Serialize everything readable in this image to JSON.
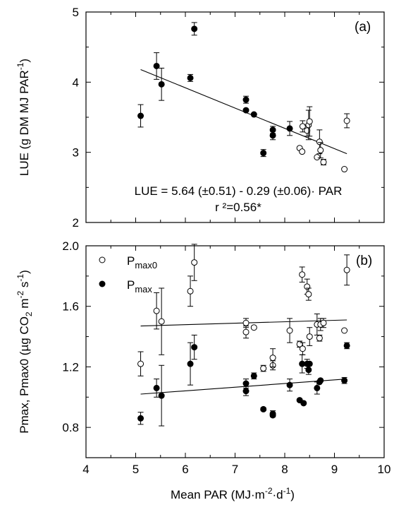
{
  "chart_data": [
    {
      "type": "scatter",
      "panel_label": "(a)",
      "ylabel": "LUE (g DM MJ PAR",
      "ylabel_exp": "-1",
      "ylabel_close": ")",
      "xlim": [
        4,
        10
      ],
      "ylim": [
        2,
        5
      ],
      "y_ticks": [
        "2",
        "3",
        "4",
        "5"
      ],
      "grid": false,
      "series": [
        {
          "marker": "filled",
          "x": [
            5.1,
            5.42,
            5.52,
            6.1,
            6.18,
            7.22,
            7.22,
            7.38,
            7.57,
            7.76,
            7.76,
            8.1
          ],
          "y": [
            3.52,
            4.23,
            3.97,
            4.06,
            4.76,
            3.75,
            3.6,
            3.54,
            2.99,
            3.32,
            3.24,
            3.34
          ],
          "err": [
            0.16,
            0.19,
            0.23,
            0.05,
            0.09,
            0.05,
            0.0,
            0.0,
            0.05,
            0.05,
            0.06,
            0.1
          ]
        },
        {
          "marker": "open",
          "x": [
            8.3,
            8.35,
            8.36,
            8.45,
            8.48,
            8.5,
            8.65,
            8.7,
            8.72,
            8.78,
            9.2,
            9.25
          ],
          "y": [
            3.06,
            3.01,
            3.37,
            3.31,
            3.39,
            3.44,
            2.93,
            3.15,
            3.03,
            2.86,
            2.76,
            3.45
          ],
          "err": [
            0.0,
            0.0,
            0.08,
            0.08,
            0.21,
            0.21,
            0.0,
            0.17,
            0.11,
            0.04,
            0.0,
            0.1
          ]
        }
      ],
      "regression": {
        "x": [
          5.1,
          9.25
        ],
        "y": [
          4.18,
          2.98
        ]
      },
      "annotations": [
        "LUE = 5.64 (±0.51) - 0.29 (±0.06)· PAR",
        "r ²=0.56*"
      ]
    },
    {
      "type": "scatter",
      "panel_label": "(b)",
      "xlabel": "Mean PAR (MJ·m",
      "xlabel_exp1": "-2",
      "xlabel_mid": "·d",
      "xlabel_exp2": "-1",
      "xlabel_close": ")",
      "ylabel": "Pmax, Pmax0 (µg CO",
      "ylabel_sub": "2",
      "ylabel_m": " m",
      "ylabel_exp1": "-2",
      "ylabel_s": " s",
      "ylabel_exp2": "-1",
      "ylabel_close": ")",
      "xlim": [
        4,
        10
      ],
      "ylim": [
        0.6,
        2.0
      ],
      "x_ticks": [
        "4",
        "5",
        "6",
        "7",
        "8",
        "9",
        "10"
      ],
      "y_ticks": [
        "0.8",
        "1.2",
        "1.6",
        "2.0"
      ],
      "grid": false,
      "legend": {
        "position": "top-left"
      },
      "series": [
        {
          "name": "P",
          "name_sub": "max0",
          "marker": "open",
          "x": [
            5.1,
            5.42,
            5.52,
            6.1,
            6.18,
            7.22,
            7.22,
            7.38,
            7.57,
            7.76,
            7.76,
            8.1,
            8.3,
            8.35,
            8.36,
            8.45,
            8.48,
            8.5,
            8.65,
            8.7,
            8.72,
            8.78,
            9.2,
            9.25
          ],
          "y": [
            1.22,
            1.57,
            1.5,
            1.7,
            1.89,
            1.49,
            1.43,
            1.46,
            1.19,
            1.21,
            1.26,
            1.44,
            1.35,
            1.81,
            1.32,
            1.73,
            1.68,
            1.4,
            1.48,
            1.39,
            1.48,
            1.49,
            1.44,
            1.84
          ],
          "err": [
            0.08,
            0.12,
            0.22,
            0.1,
            0.12,
            0.03,
            0.04,
            0.0,
            0.02,
            0.03,
            0.06,
            0.08,
            0.02,
            0.05,
            0.04,
            0.05,
            0.04,
            0.06,
            0.07,
            0.02,
            0.04,
            0.03,
            0.0,
            0.1
          ]
        },
        {
          "name": "P",
          "name_sub": "max",
          "marker": "filled",
          "x": [
            5.1,
            5.42,
            5.52,
            6.1,
            6.18,
            7.22,
            7.22,
            7.38,
            7.57,
            7.76,
            7.76,
            8.1,
            8.3,
            8.35,
            8.38,
            8.45,
            8.48,
            8.5,
            8.65,
            8.7,
            8.72,
            9.2,
            9.25
          ],
          "y": [
            0.86,
            1.06,
            1.01,
            1.22,
            1.33,
            1.09,
            1.04,
            1.14,
            0.92,
            0.88,
            0.89,
            1.08,
            0.98,
            1.22,
            0.96,
            1.22,
            1.18,
            1.22,
            1.06,
            1.1,
            1.11,
            1.11,
            1.34
          ],
          "err": [
            0.04,
            0.06,
            0.2,
            0.14,
            0.08,
            0.03,
            0.03,
            0.02,
            0.01,
            0.01,
            0.02,
            0.04,
            0.0,
            0.06,
            0.0,
            0.03,
            0.03,
            0.0,
            0.04,
            0.0,
            0.0,
            0.02,
            0.02
          ]
        }
      ],
      "regressions": [
        {
          "x": [
            5.1,
            9.25
          ],
          "y": [
            1.47,
            1.51
          ]
        },
        {
          "x": [
            5.1,
            9.25
          ],
          "y": [
            1.02,
            1.12
          ]
        }
      ]
    }
  ]
}
